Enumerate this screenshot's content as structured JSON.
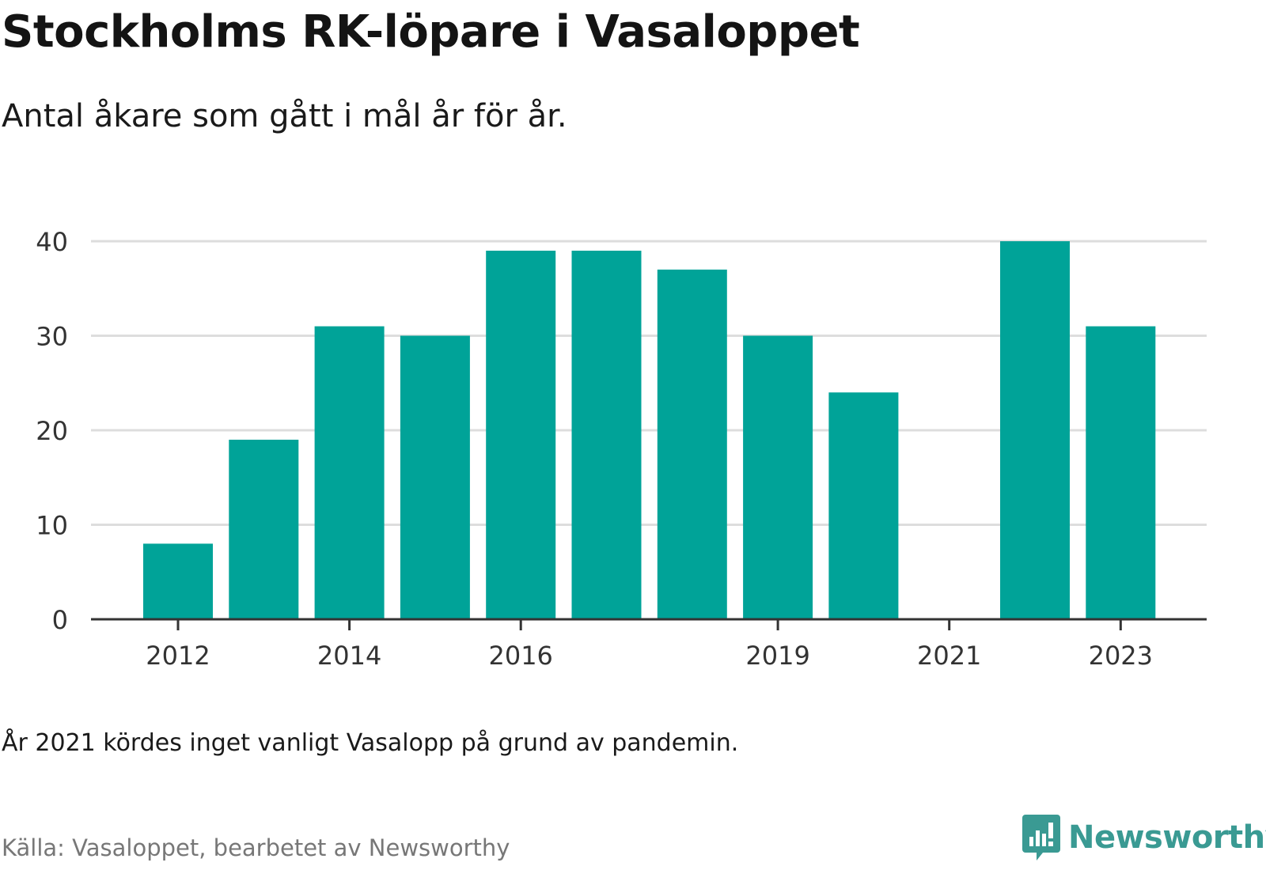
{
  "title": "Stockholms RK-löpare i Vasaloppet",
  "subtitle": "Antal åkare som gått i mål år för år.",
  "note": "År 2021 kördes inget vanligt Vasalopp på grund av pandemin.",
  "source": "Källa: Vasaloppet, bearbetet av Newsworthy",
  "brand": {
    "name": "Newsworthy",
    "icon": "newsworthy-logo-icon",
    "color": "#3a9a93"
  },
  "colors": {
    "bar": "#00a398",
    "grid": "#dddddd",
    "axis": "#333333",
    "tick_label": "#333333"
  },
  "chart_data": {
    "type": "bar",
    "categories": [
      "2012",
      "2013",
      "2014",
      "2015",
      "2016",
      "2017",
      "2018",
      "2019",
      "2020",
      "2021",
      "2022",
      "2023"
    ],
    "values": [
      8,
      19,
      31,
      30,
      39,
      39,
      37,
      30,
      24,
      null,
      40,
      31
    ],
    "x_tick_labels": [
      "2012",
      "2014",
      "2016",
      "2019",
      "2021",
      "2023"
    ],
    "y_ticks": [
      0,
      10,
      20,
      30,
      40
    ],
    "ylim": [
      0,
      40
    ],
    "xlabel": "",
    "ylabel": "",
    "grid": true,
    "legend": false
  }
}
